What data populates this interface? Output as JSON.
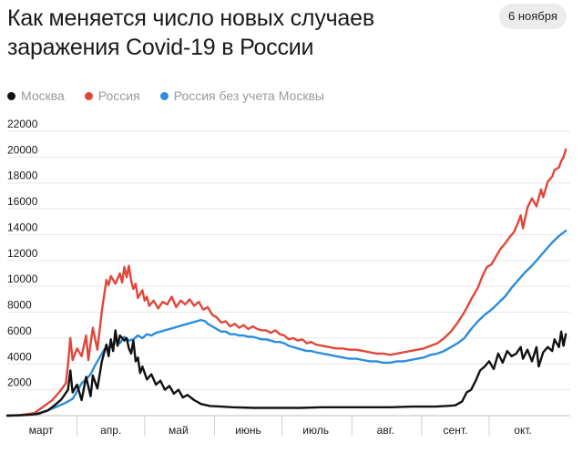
{
  "header": {
    "title": "Как меняется число новых случаев заражения Covid-19 в России",
    "date_badge": "6 ноября"
  },
  "legend": [
    {
      "label": "Москва",
      "color": "#111111"
    },
    {
      "label": "Россия",
      "color": "#e0473a"
    },
    {
      "label": "Россия без учета Москвы",
      "color": "#2b8ddc"
    }
  ],
  "chart_data": {
    "type": "line",
    "title": "Как меняется число новых случаев заражения Covid-19 в России",
    "xlabel": "",
    "ylabel": "",
    "x_unit": "day since 1 March 2020",
    "xlim": [
      0,
      250
    ],
    "ylim": [
      0,
      22000
    ],
    "y_ticks": [
      2000,
      4000,
      6000,
      8000,
      10000,
      12000,
      14000,
      16000,
      18000,
      20000,
      22000
    ],
    "x_tick_labels": [
      {
        "label": "март",
        "x": 15
      },
      {
        "label": "апр.",
        "x": 46
      },
      {
        "label": "май",
        "x": 76
      },
      {
        "label": "июнь",
        "x": 107
      },
      {
        "label": "июль",
        "x": 137
      },
      {
        "label": "авг.",
        "x": 168
      },
      {
        "label": "сент.",
        "x": 199
      },
      {
        "label": "окт.",
        "x": 229
      }
    ],
    "x_tick_marks": [
      31,
      61,
      92,
      122,
      153,
      184,
      214
    ],
    "grid": true,
    "legend_position": "top-left",
    "series": [
      {
        "name": "Москва",
        "color": "#111111",
        "points": [
          [
            0,
            0
          ],
          [
            5,
            20
          ],
          [
            10,
            60
          ],
          [
            14,
            150
          ],
          [
            18,
            400
          ],
          [
            21,
            800
          ],
          [
            24,
            1250
          ],
          [
            27,
            2000
          ],
          [
            28,
            3500
          ],
          [
            29,
            1800
          ],
          [
            31,
            2400
          ],
          [
            33,
            1200
          ],
          [
            35,
            3000
          ],
          [
            37,
            1500
          ],
          [
            38,
            3100
          ],
          [
            40,
            2100
          ],
          [
            42,
            4200
          ],
          [
            44,
            5500
          ],
          [
            45,
            4600
          ],
          [
            46,
            5900
          ],
          [
            47,
            5000
          ],
          [
            48,
            6600
          ],
          [
            49,
            5400
          ],
          [
            50,
            6200
          ],
          [
            52,
            5800
          ],
          [
            53,
            6000
          ],
          [
            54,
            5200
          ],
          [
            55,
            4800
          ],
          [
            56,
            5800
          ],
          [
            57,
            4200
          ],
          [
            58,
            4500
          ],
          [
            59,
            3300
          ],
          [
            60,
            3800
          ],
          [
            62,
            2800
          ],
          [
            64,
            3200
          ],
          [
            66,
            2400
          ],
          [
            68,
            2700
          ],
          [
            70,
            2000
          ],
          [
            72,
            2300
          ],
          [
            74,
            1700
          ],
          [
            76,
            2000
          ],
          [
            78,
            1400
          ],
          [
            80,
            1600
          ],
          [
            83,
            1200
          ],
          [
            86,
            900
          ],
          [
            90,
            750
          ],
          [
            95,
            700
          ],
          [
            100,
            650
          ],
          [
            110,
            600
          ],
          [
            120,
            600
          ],
          [
            130,
            600
          ],
          [
            140,
            650
          ],
          [
            150,
            650
          ],
          [
            160,
            650
          ],
          [
            170,
            650
          ],
          [
            180,
            700
          ],
          [
            190,
            700
          ],
          [
            195,
            750
          ],
          [
            199,
            800
          ],
          [
            202,
            1100
          ],
          [
            204,
            1800
          ],
          [
            206,
            2000
          ],
          [
            208,
            2700
          ],
          [
            210,
            3500
          ],
          [
            212,
            3800
          ],
          [
            214,
            4200
          ],
          [
            216,
            3600
          ],
          [
            218,
            4800
          ],
          [
            220,
            4100
          ],
          [
            222,
            5000
          ],
          [
            224,
            4600
          ],
          [
            226,
            4800
          ],
          [
            228,
            5300
          ],
          [
            229,
            4400
          ],
          [
            231,
            5100
          ],
          [
            233,
            4200
          ],
          [
            235,
            5300
          ],
          [
            236,
            3800
          ],
          [
            238,
            4900
          ],
          [
            240,
            5300
          ],
          [
            242,
            5000
          ],
          [
            243,
            5900
          ],
          [
            245,
            5300
          ],
          [
            246,
            6500
          ],
          [
            247,
            5400
          ],
          [
            248,
            6300
          ]
        ]
      },
      {
        "name": "Россия",
        "color": "#e0473a",
        "points": [
          [
            0,
            0
          ],
          [
            6,
            50
          ],
          [
            12,
            200
          ],
          [
            16,
            700
          ],
          [
            20,
            1200
          ],
          [
            23,
            1800
          ],
          [
            26,
            2500
          ],
          [
            27,
            4000
          ],
          [
            28,
            6000
          ],
          [
            29,
            4300
          ],
          [
            31,
            5200
          ],
          [
            33,
            4600
          ],
          [
            35,
            6200
          ],
          [
            36,
            4300
          ],
          [
            38,
            6800
          ],
          [
            40,
            5100
          ],
          [
            42,
            8100
          ],
          [
            44,
            10500
          ],
          [
            45,
            10100
          ],
          [
            46,
            10800
          ],
          [
            48,
            10200
          ],
          [
            50,
            11000
          ],
          [
            51,
            10300
          ],
          [
            52,
            11500
          ],
          [
            53,
            10700
          ],
          [
            54,
            11600
          ],
          [
            55,
            10400
          ],
          [
            56,
            9800
          ],
          [
            57,
            10200
          ],
          [
            58,
            9100
          ],
          [
            59,
            9400
          ],
          [
            60,
            9700
          ],
          [
            61,
            8900
          ],
          [
            62,
            9200
          ],
          [
            63,
            8500
          ],
          [
            65,
            8900
          ],
          [
            67,
            8300
          ],
          [
            69,
            8800
          ],
          [
            71,
            8600
          ],
          [
            73,
            9200
          ],
          [
            75,
            8400
          ],
          [
            77,
            8900
          ],
          [
            79,
            8600
          ],
          [
            81,
            9000
          ],
          [
            83,
            8500
          ],
          [
            85,
            8800
          ],
          [
            87,
            8200
          ],
          [
            89,
            8400
          ],
          [
            91,
            7800
          ],
          [
            93,
            7600
          ],
          [
            95,
            7200
          ],
          [
            97,
            7300
          ],
          [
            99,
            6900
          ],
          [
            101,
            7100
          ],
          [
            103,
            6800
          ],
          [
            105,
            7000
          ],
          [
            107,
            6700
          ],
          [
            109,
            6900
          ],
          [
            111,
            6700
          ],
          [
            113,
            6600
          ],
          [
            115,
            6600
          ],
          [
            117,
            6400
          ],
          [
            119,
            6600
          ],
          [
            121,
            6300
          ],
          [
            123,
            6200
          ],
          [
            125,
            5900
          ],
          [
            127,
            6000
          ],
          [
            129,
            5800
          ],
          [
            131,
            5900
          ],
          [
            133,
            5600
          ],
          [
            135,
            5700
          ],
          [
            137,
            5500
          ],
          [
            140,
            5400
          ],
          [
            143,
            5300
          ],
          [
            146,
            5200
          ],
          [
            149,
            5200
          ],
          [
            152,
            5100
          ],
          [
            155,
            5100
          ],
          [
            158,
            5000
          ],
          [
            161,
            4900
          ],
          [
            164,
            4800
          ],
          [
            167,
            4800
          ],
          [
            170,
            4700
          ],
          [
            173,
            4800
          ],
          [
            176,
            4900
          ],
          [
            179,
            5000
          ],
          [
            182,
            5100
          ],
          [
            185,
            5200
          ],
          [
            188,
            5400
          ],
          [
            191,
            5600
          ],
          [
            194,
            6000
          ],
          [
            197,
            6500
          ],
          [
            200,
            7200
          ],
          [
            203,
            8000
          ],
          [
            206,
            9000
          ],
          [
            209,
            9900
          ],
          [
            211,
            10800
          ],
          [
            213,
            11500
          ],
          [
            215,
            11700
          ],
          [
            217,
            12300
          ],
          [
            219,
            12900
          ],
          [
            221,
            13300
          ],
          [
            223,
            13800
          ],
          [
            225,
            14200
          ],
          [
            227,
            15000
          ],
          [
            228,
            15500
          ],
          [
            229,
            14500
          ],
          [
            231,
            16100
          ],
          [
            233,
            16800
          ],
          [
            235,
            16200
          ],
          [
            237,
            17500
          ],
          [
            238,
            16900
          ],
          [
            240,
            18100
          ],
          [
            242,
            18500
          ],
          [
            243,
            19000
          ],
          [
            245,
            19200
          ],
          [
            246,
            19700
          ],
          [
            247,
            20000
          ],
          [
            248,
            20600
          ]
        ]
      },
      {
        "name": "Россия без учета Москвы",
        "color": "#2b8ddc",
        "points": [
          [
            0,
            0
          ],
          [
            8,
            50
          ],
          [
            14,
            200
          ],
          [
            18,
            400
          ],
          [
            22,
            700
          ],
          [
            26,
            1000
          ],
          [
            29,
            1300
          ],
          [
            31,
            1900
          ],
          [
            33,
            2500
          ],
          [
            35,
            2800
          ],
          [
            37,
            3200
          ],
          [
            39,
            3900
          ],
          [
            41,
            4500
          ],
          [
            43,
            5100
          ],
          [
            45,
            5300
          ],
          [
            47,
            5300
          ],
          [
            48,
            5800
          ],
          [
            50,
            5600
          ],
          [
            52,
            6100
          ],
          [
            54,
            5800
          ],
          [
            56,
            5900
          ],
          [
            58,
            6200
          ],
          [
            60,
            6000
          ],
          [
            62,
            6300
          ],
          [
            64,
            6200
          ],
          [
            66,
            6400
          ],
          [
            68,
            6500
          ],
          [
            70,
            6600
          ],
          [
            72,
            6700
          ],
          [
            74,
            6800
          ],
          [
            76,
            6900
          ],
          [
            78,
            7000
          ],
          [
            80,
            7100
          ],
          [
            82,
            7200
          ],
          [
            84,
            7300
          ],
          [
            86,
            7400
          ],
          [
            88,
            7300
          ],
          [
            89,
            7100
          ],
          [
            91,
            6900
          ],
          [
            93,
            6700
          ],
          [
            95,
            6500
          ],
          [
            97,
            6500
          ],
          [
            99,
            6300
          ],
          [
            101,
            6300
          ],
          [
            103,
            6200
          ],
          [
            105,
            6200
          ],
          [
            107,
            6100
          ],
          [
            109,
            6100
          ],
          [
            111,
            6000
          ],
          [
            113,
            5900
          ],
          [
            115,
            5900
          ],
          [
            117,
            5800
          ],
          [
            119,
            5700
          ],
          [
            121,
            5700
          ],
          [
            123,
            5600
          ],
          [
            125,
            5400
          ],
          [
            127,
            5300
          ],
          [
            129,
            5200
          ],
          [
            131,
            5100
          ],
          [
            133,
            5000
          ],
          [
            135,
            5000
          ],
          [
            137,
            4900
          ],
          [
            140,
            4800
          ],
          [
            143,
            4700
          ],
          [
            146,
            4600
          ],
          [
            149,
            4500
          ],
          [
            152,
            4400
          ],
          [
            155,
            4400
          ],
          [
            158,
            4300
          ],
          [
            161,
            4200
          ],
          [
            164,
            4200
          ],
          [
            167,
            4100
          ],
          [
            170,
            4100
          ],
          [
            173,
            4200
          ],
          [
            176,
            4200
          ],
          [
            179,
            4300
          ],
          [
            182,
            4400
          ],
          [
            185,
            4500
          ],
          [
            188,
            4700
          ],
          [
            191,
            4800
          ],
          [
            194,
            5000
          ],
          [
            197,
            5300
          ],
          [
            200,
            5600
          ],
          [
            203,
            6000
          ],
          [
            206,
            6700
          ],
          [
            209,
            7300
          ],
          [
            212,
            7800
          ],
          [
            215,
            8200
          ],
          [
            218,
            8700
          ],
          [
            221,
            9200
          ],
          [
            224,
            9900
          ],
          [
            227,
            10500
          ],
          [
            230,
            11100
          ],
          [
            233,
            11600
          ],
          [
            236,
            12200
          ],
          [
            239,
            12800
          ],
          [
            242,
            13400
          ],
          [
            245,
            13900
          ],
          [
            248,
            14300
          ]
        ]
      }
    ]
  }
}
